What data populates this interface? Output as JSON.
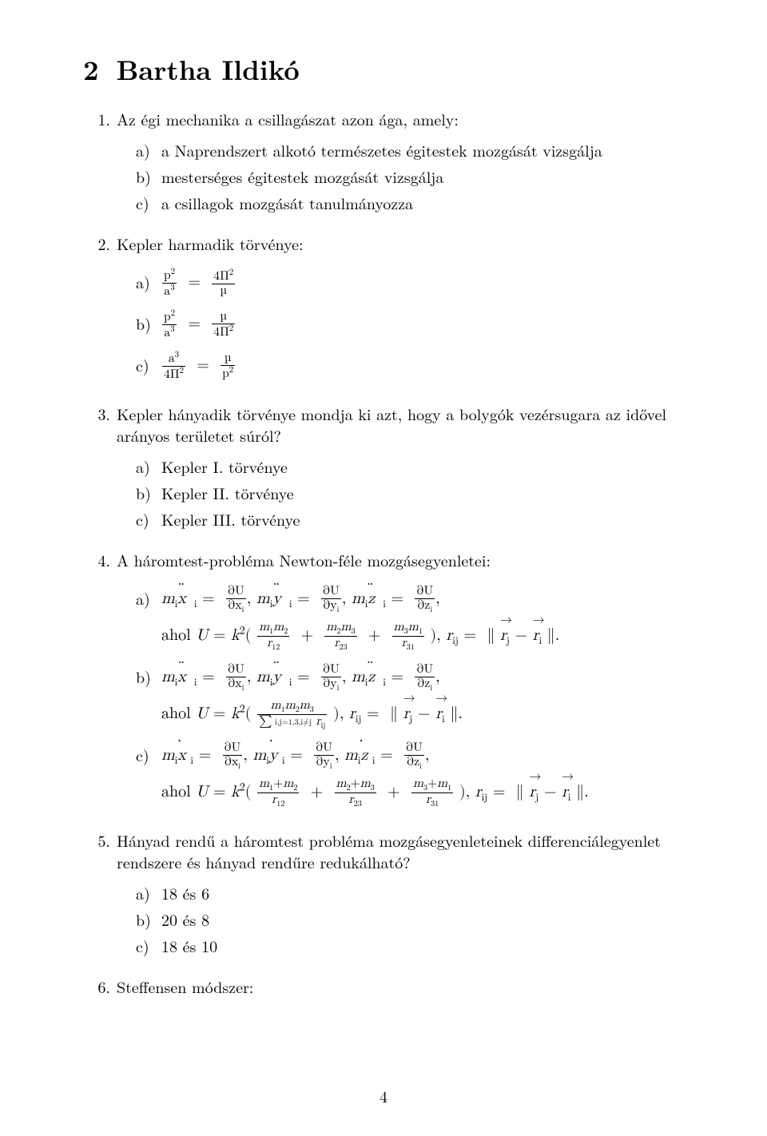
{
  "section": {
    "number": "2",
    "title": "Bartha Ildikó"
  },
  "page_number": "4",
  "q1": {
    "num": "1.",
    "text": "Az égi mechanika a csillagászat azon ága, amely:",
    "a_lab": "a)",
    "a": "a Naprendszert alkotó természetes égitestek mozgását vizsgálja",
    "b_lab": "b)",
    "b": "mesterséges égitestek mozgását vizsgálja",
    "c_lab": "c)",
    "c": "a csillagok mozgását tanulmányozza"
  },
  "q2": {
    "num": "2.",
    "text": "Kepler harmadik törvénye:",
    "a_lab": "a)",
    "b_lab": "b)",
    "c_lab": "c)",
    "sym": {
      "p": "p",
      "a": "a",
      "Pi": "Π",
      "mu": "µ",
      "eq": "=",
      "two": "2",
      "three": "3",
      "four": "4"
    }
  },
  "q3": {
    "num": "3.",
    "text": "Kepler hányadik törvénye mondja ki azt, hogy a bolygók vezérsugara az idővel arányos területet súról?",
    "a_lab": "a)",
    "a": "Kepler I. törvénye",
    "b_lab": "b)",
    "b": "Kepler II. törvénye",
    "c_lab": "c)",
    "c": "Kepler III. törvénye"
  },
  "q4": {
    "num": "4.",
    "text": "A háromtest-probléma Newton-féle mozgásegyenletei:",
    "a_lab": "a)",
    "b_lab": "b)",
    "c_lab": "c)",
    "where": "ahol",
    "sym": {
      "m": "m",
      "i": "i",
      "x": "x",
      "y": "y",
      "z": "z",
      "dd": "¨",
      "d": "˙",
      "eq": "=",
      "comma": ",",
      "dU": "∂U",
      "dx": "∂x",
      "dy": "∂y",
      "dz": "∂z",
      "U": "U",
      "k": "k",
      "two": "2",
      "lp": "(",
      "rp": ")",
      "m1m2": "m",
      "plus": "+",
      "r": "r",
      "ij": "ij",
      "rj": "r",
      "ri": "r",
      "j": "j",
      "norm": "∥",
      "minus": "−",
      "dot": ".",
      "r12": "12",
      "r23": "23",
      "r31": "31",
      "one": "1",
      "two2": "2",
      "three": "3",
      "sumtext": "i,j=1,3,i≠j",
      "Sigma": "∑"
    }
  },
  "q5": {
    "num": "5.",
    "text": "Hányad rendű a háromtest probléma mozgásegyenleteinek differenciálegyenlet rendszere és hányad rendűre redukálható?",
    "a_lab": "a)",
    "a": "18 és 6",
    "b_lab": "b)",
    "b": "20 és 8",
    "c_lab": "c)",
    "c": "18 és 10"
  },
  "q6": {
    "num": "6.",
    "text": "Steffensen módszer:"
  }
}
